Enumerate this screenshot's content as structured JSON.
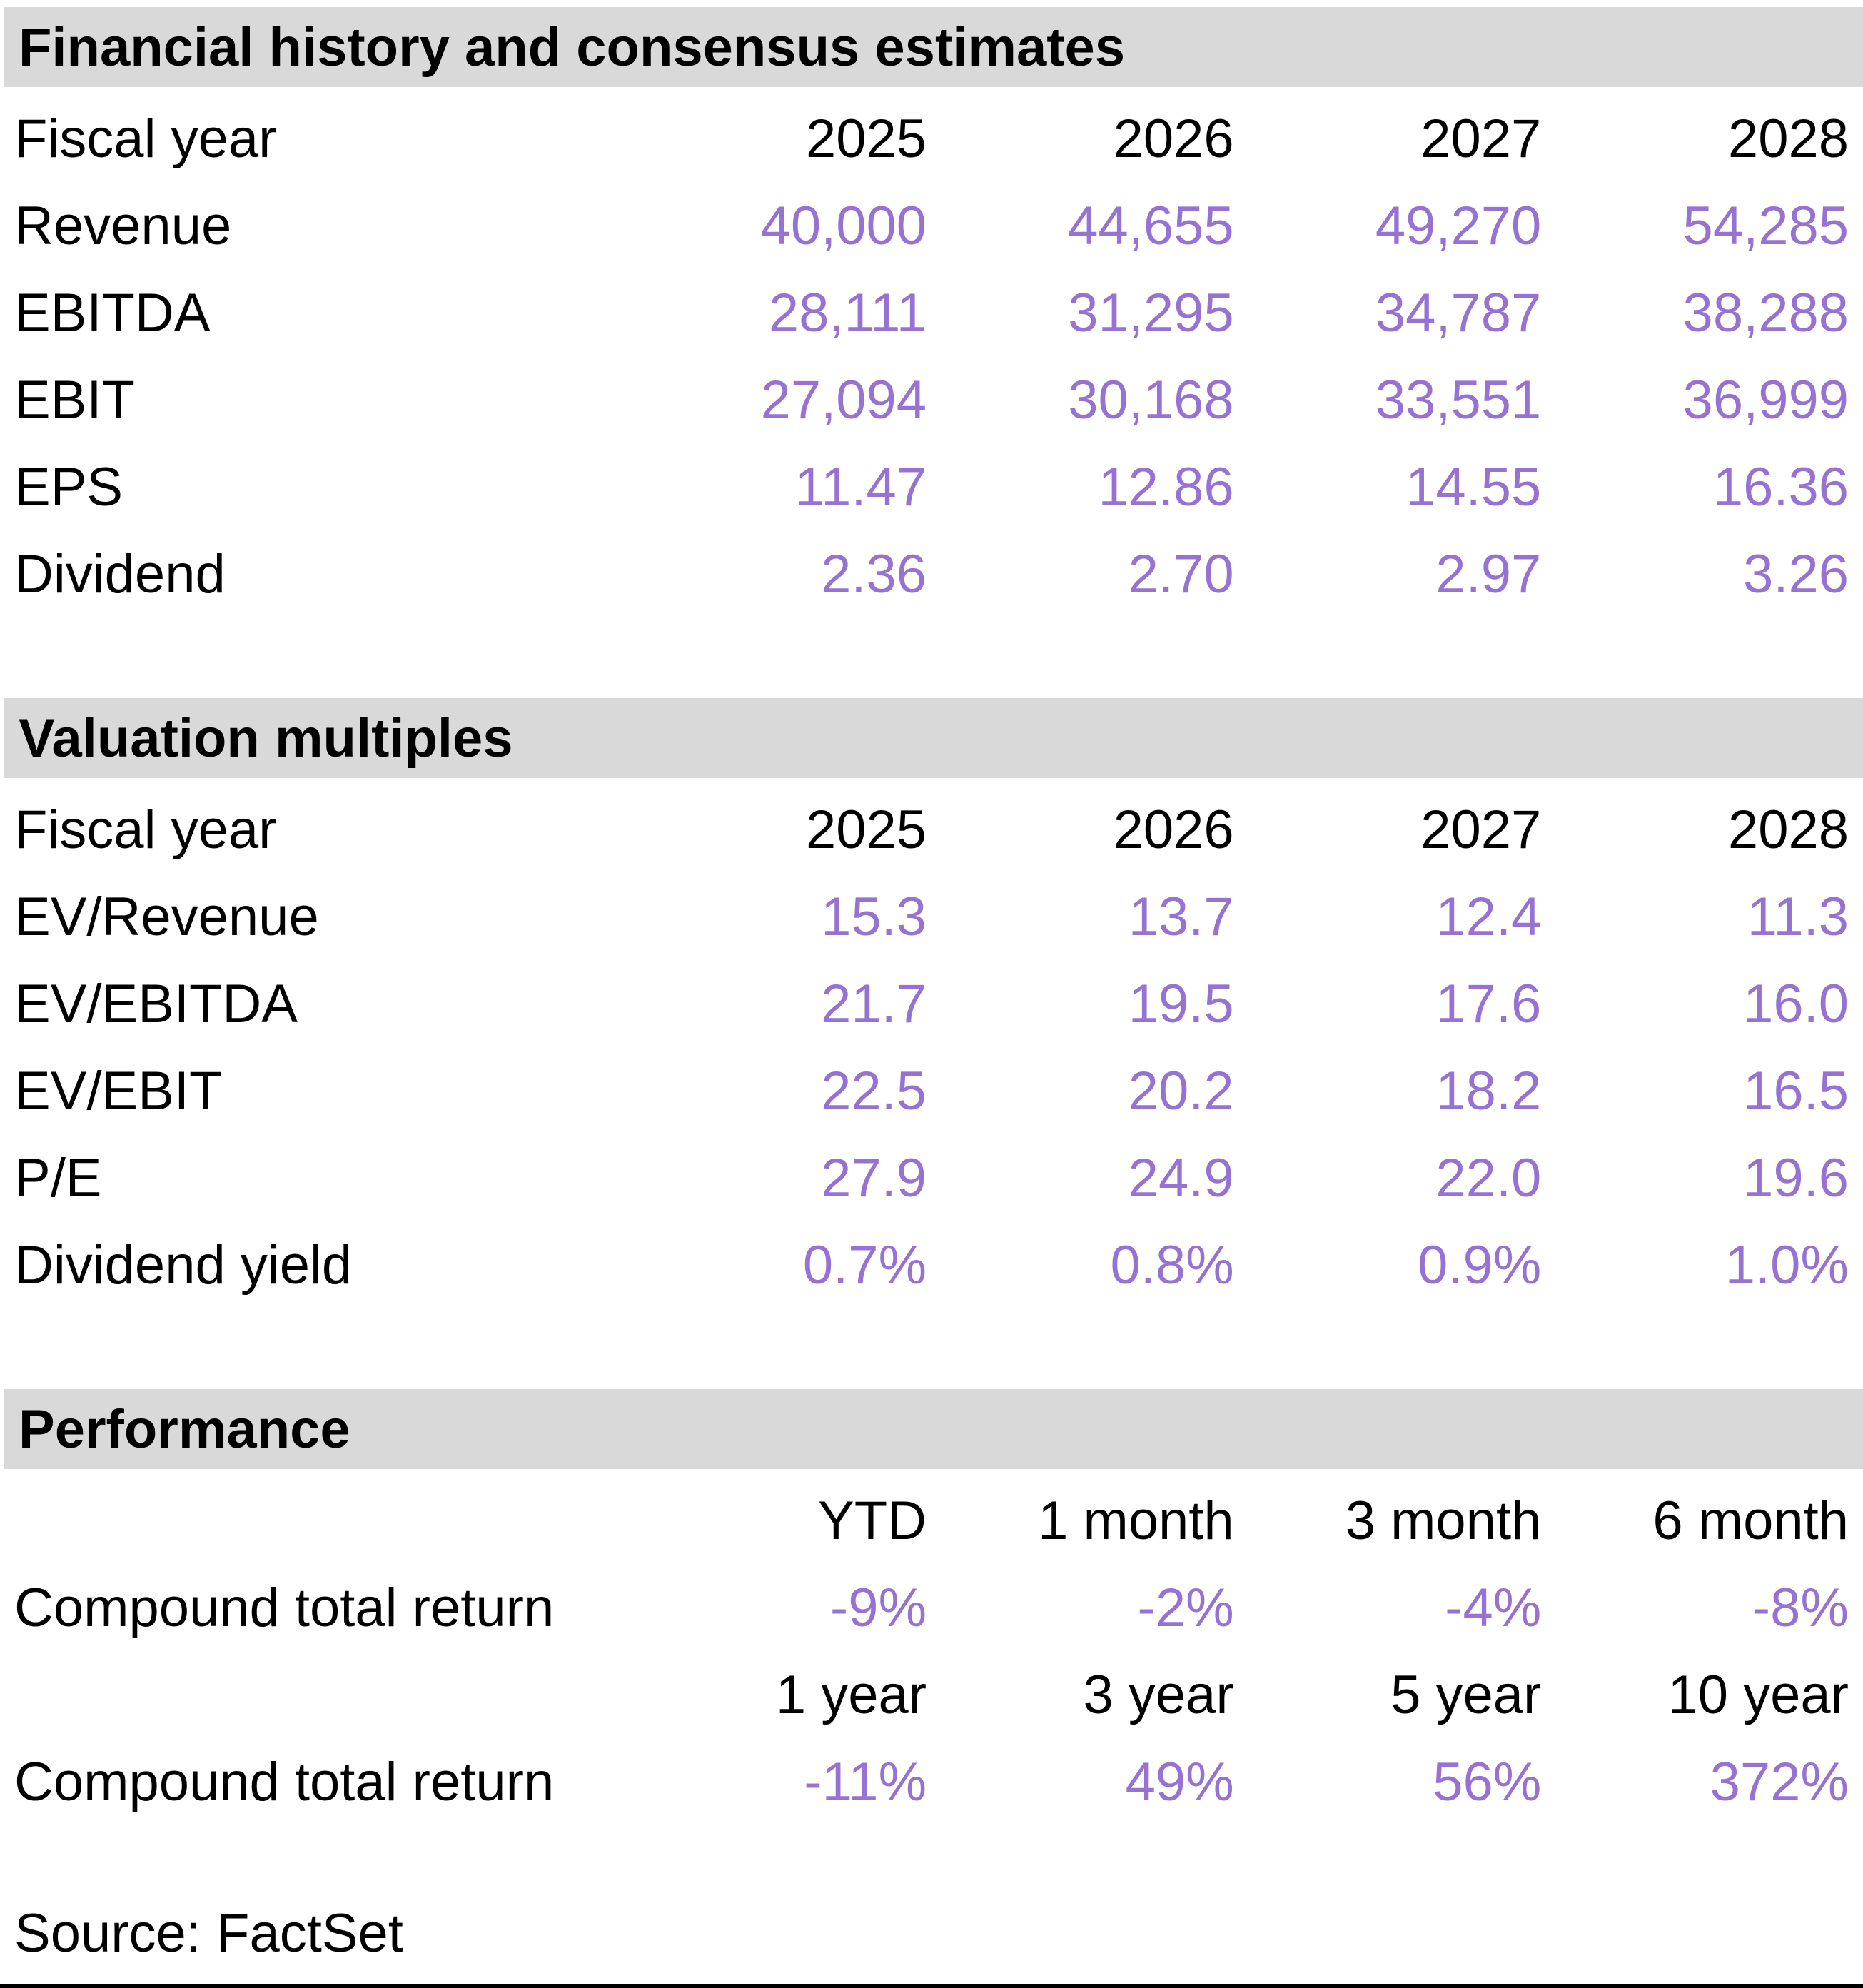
{
  "colors": {
    "accent_purple": "#9673D3",
    "section_header_bg": "#D9D9D9",
    "text": "#000000"
  },
  "sections": [
    {
      "title": "Financial history and consensus estimates",
      "column_label": "Fiscal year",
      "columns": [
        "2025",
        "2026",
        "2027",
        "2028"
      ],
      "rows": [
        {
          "label": "Revenue",
          "values": [
            "40,000",
            "44,655",
            "49,270",
            "54,285"
          ]
        },
        {
          "label": "EBITDA",
          "values": [
            "28,111",
            "31,295",
            "34,787",
            "38,288"
          ]
        },
        {
          "label": "EBIT",
          "values": [
            "27,094",
            "30,168",
            "33,551",
            "36,999"
          ]
        },
        {
          "label": "EPS",
          "values": [
            "11.47",
            "12.86",
            "14.55",
            "16.36"
          ]
        },
        {
          "label": "Dividend",
          "values": [
            "2.36",
            "2.70",
            "2.97",
            "3.26"
          ]
        }
      ]
    },
    {
      "title": "Valuation multiples",
      "column_label": "Fiscal year",
      "columns": [
        "2025",
        "2026",
        "2027",
        "2028"
      ],
      "rows": [
        {
          "label": "EV/Revenue",
          "values": [
            "15.3",
            "13.7",
            "12.4",
            "11.3"
          ]
        },
        {
          "label": "EV/EBITDA",
          "values": [
            "21.7",
            "19.5",
            "17.6",
            "16.0"
          ]
        },
        {
          "label": "EV/EBIT",
          "values": [
            "22.5",
            "20.2",
            "18.2",
            "16.5"
          ]
        },
        {
          "label": "P/E",
          "values": [
            "27.9",
            "24.9",
            "22.0",
            "19.6"
          ]
        },
        {
          "label": "Dividend yield",
          "values": [
            "0.7%",
            "0.8%",
            "0.9%",
            "1.0%"
          ]
        }
      ]
    },
    {
      "title": "Performance",
      "groups": [
        {
          "columns": [
            "YTD",
            "1 month",
            "3 month",
            "6 month"
          ],
          "row": {
            "label": "Compound total return",
            "values": [
              "-9%",
              "-2%",
              "-4%",
              "-8%"
            ]
          }
        },
        {
          "columns": [
            "1 year",
            "3 year",
            "5 year",
            "10 year"
          ],
          "row": {
            "label": "Compound total return",
            "values": [
              "-11%",
              "49%",
              "56%",
              "372%"
            ]
          }
        }
      ]
    }
  ],
  "footer": {
    "source": "Source: FactSet"
  },
  "chart_data": [
    {
      "type": "table",
      "title": "Financial history and consensus estimates",
      "categories": [
        "2025",
        "2026",
        "2027",
        "2028"
      ],
      "series": [
        {
          "name": "Revenue",
          "values": [
            40000,
            44655,
            49270,
            54285
          ]
        },
        {
          "name": "EBITDA",
          "values": [
            28111,
            31295,
            34787,
            38288
          ]
        },
        {
          "name": "EBIT",
          "values": [
            27094,
            30168,
            33551,
            36999
          ]
        },
        {
          "name": "EPS",
          "values": [
            11.47,
            12.86,
            14.55,
            16.36
          ]
        },
        {
          "name": "Dividend",
          "values": [
            2.36,
            2.7,
            2.97,
            3.26
          ]
        }
      ]
    },
    {
      "type": "table",
      "title": "Valuation multiples",
      "categories": [
        "2025",
        "2026",
        "2027",
        "2028"
      ],
      "series": [
        {
          "name": "EV/Revenue",
          "values": [
            15.3,
            13.7,
            12.4,
            11.3
          ]
        },
        {
          "name": "EV/EBITDA",
          "values": [
            21.7,
            19.5,
            17.6,
            16.0
          ]
        },
        {
          "name": "EV/EBIT",
          "values": [
            22.5,
            20.2,
            18.2,
            16.5
          ]
        },
        {
          "name": "P/E",
          "values": [
            27.9,
            24.9,
            22.0,
            19.6
          ]
        },
        {
          "name": "Dividend yield",
          "values": [
            "0.7%",
            "0.8%",
            "0.9%",
            "1.0%"
          ]
        }
      ]
    },
    {
      "type": "table",
      "title": "Performance",
      "categories": [
        "YTD",
        "1 month",
        "3 month",
        "6 month",
        "1 year",
        "3 year",
        "5 year",
        "10 year"
      ],
      "series": [
        {
          "name": "Compound total return",
          "values": [
            "-9%",
            "-2%",
            "-4%",
            "-8%",
            "-11%",
            "49%",
            "56%",
            "372%"
          ]
        }
      ]
    }
  ]
}
